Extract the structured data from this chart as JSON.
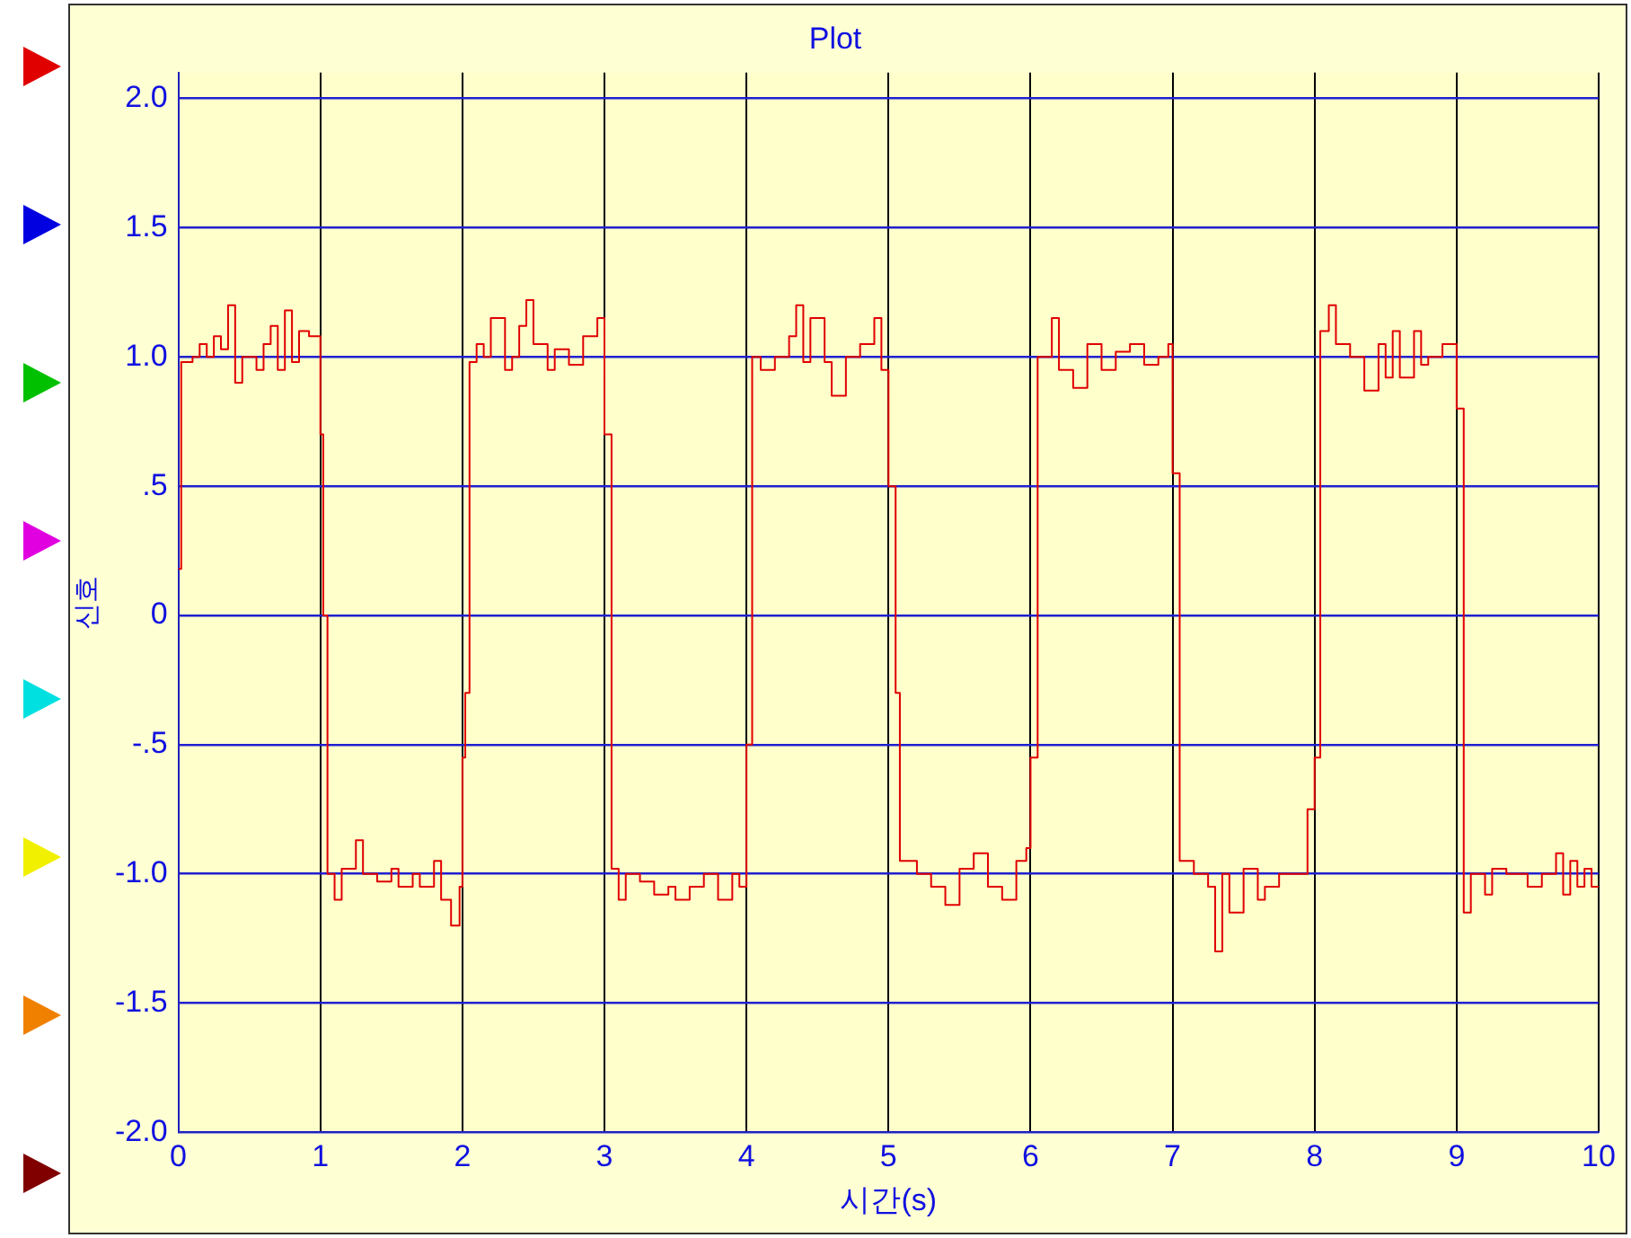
{
  "chart_data": {
    "type": "step",
    "title": "Plot",
    "xlabel": "시간(s)",
    "ylabel": "신호",
    "x": [
      0,
      0.02,
      0.1,
      0.15,
      0.2,
      0.25,
      0.3,
      0.35,
      0.4,
      0.45,
      0.55,
      0.6,
      0.65,
      0.7,
      0.75,
      0.8,
      0.85,
      0.92,
      1.0,
      1.02,
      1.05,
      1.1,
      1.15,
      1.25,
      1.3,
      1.4,
      1.5,
      1.55,
      1.65,
      1.7,
      1.8,
      1.85,
      1.92,
      1.98,
      2.0,
      2.02,
      2.05,
      2.1,
      2.15,
      2.2,
      2.3,
      2.35,
      2.4,
      2.45,
      2.5,
      2.6,
      2.65,
      2.75,
      2.85,
      2.95,
      3.0,
      3.05,
      3.1,
      3.15,
      3.25,
      3.35,
      3.45,
      3.5,
      3.6,
      3.7,
      3.8,
      3.9,
      3.95,
      4.0,
      4.04,
      4.1,
      4.2,
      4.3,
      4.35,
      4.4,
      4.45,
      4.55,
      4.6,
      4.7,
      4.8,
      4.9,
      4.95,
      5.0,
      5.05,
      5.08,
      5.2,
      5.3,
      5.4,
      5.5,
      5.6,
      5.7,
      5.8,
      5.9,
      5.97,
      6.0,
      6.05,
      6.15,
      6.2,
      6.3,
      6.4,
      6.5,
      6.6,
      6.7,
      6.8,
      6.9,
      6.97,
      7.0,
      7.05,
      7.15,
      7.25,
      7.3,
      7.35,
      7.4,
      7.5,
      7.6,
      7.65,
      7.75,
      7.95,
      8.0,
      8.04,
      8.1,
      8.15,
      8.25,
      8.35,
      8.45,
      8.5,
      8.55,
      8.6,
      8.7,
      8.75,
      8.8,
      8.9,
      9.0,
      9.05,
      9.1,
      9.2,
      9.25,
      9.35,
      9.5,
      9.6,
      9.7,
      9.75,
      9.8,
      9.85,
      9.9,
      9.95,
      10.0
    ],
    "series": [
      {
        "color": "#e00000",
        "values": [
          0.18,
          0.98,
          1.0,
          1.05,
          1.0,
          1.08,
          1.03,
          1.2,
          0.9,
          1.0,
          0.95,
          1.05,
          1.12,
          0.95,
          1.18,
          0.98,
          1.1,
          1.08,
          0.7,
          0.0,
          -1.0,
          -1.1,
          -0.98,
          -0.87,
          -1.0,
          -1.03,
          -0.98,
          -1.05,
          -1.0,
          -1.05,
          -0.95,
          -1.1,
          -1.2,
          -1.05,
          -0.55,
          -0.3,
          0.98,
          1.05,
          1.0,
          1.15,
          0.95,
          1.0,
          1.12,
          1.22,
          1.05,
          0.95,
          1.03,
          0.97,
          1.08,
          1.15,
          0.7,
          -0.98,
          -1.1,
          -1.0,
          -1.03,
          -1.08,
          -1.05,
          -1.1,
          -1.05,
          -1.0,
          -1.1,
          -1.0,
          -1.05,
          -0.5,
          1.0,
          0.95,
          1.0,
          1.08,
          1.2,
          0.98,
          1.15,
          0.98,
          0.85,
          1.0,
          1.05,
          1.15,
          0.95,
          0.5,
          -0.3,
          -0.95,
          -1.0,
          -1.05,
          -1.12,
          -0.98,
          -0.92,
          -1.05,
          -1.1,
          -0.95,
          -0.9,
          -0.55,
          1.0,
          1.15,
          0.95,
          0.88,
          1.05,
          0.95,
          1.02,
          1.05,
          0.97,
          1.0,
          1.05,
          0.55,
          -0.95,
          -1.0,
          -1.05,
          -1.3,
          -1.0,
          -1.15,
          -0.98,
          -1.1,
          -1.05,
          -1.0,
          -0.75,
          -0.55,
          1.1,
          1.2,
          1.05,
          1.0,
          0.87,
          1.05,
          0.92,
          1.1,
          0.92,
          1.1,
          0.97,
          1.0,
          1.05,
          0.8,
          -1.15,
          -1.0,
          -1.08,
          -0.98,
          -1.0,
          -1.05,
          -1.0,
          -0.92,
          -1.08,
          -0.95,
          -1.05,
          -0.98,
          -1.05,
          -1.05
        ]
      }
    ],
    "xlim": [
      0,
      10
    ],
    "xticks": [
      0,
      1,
      2,
      3,
      4,
      5,
      6,
      7,
      8,
      9,
      10
    ],
    "ylim": [
      -2,
      2.1
    ],
    "yticks": [
      {
        "value": 2,
        "label": "2.0"
      },
      1.5,
      {
        "value": 1,
        "label": "1.0"
      },
      {
        "value": 0.5,
        "label": ".5"
      },
      0,
      {
        "value": -0.5,
        "label": "-.5"
      },
      {
        "value": -1,
        "label": "-1.0"
      },
      -1.5,
      {
        "value": -2,
        "label": "-2.0"
      }
    ],
    "grid": true,
    "legend": false,
    "marker": "none",
    "line_style": "solid"
  }
}
